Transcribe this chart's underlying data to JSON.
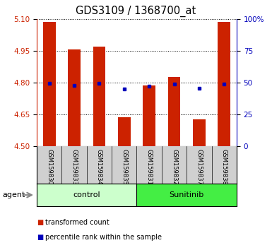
{
  "title": "GDS3109 / 1368700_at",
  "samples": [
    "GSM159830",
    "GSM159833",
    "GSM159834",
    "GSM159835",
    "GSM159831",
    "GSM159832",
    "GSM159837",
    "GSM159838"
  ],
  "red_top": [
    5.085,
    4.955,
    4.97,
    4.635,
    4.785,
    4.825,
    4.625,
    5.085
  ],
  "red_bottom": [
    4.5,
    4.5,
    4.5,
    4.5,
    4.5,
    4.5,
    4.5,
    4.5
  ],
  "blue_y": [
    4.795,
    4.785,
    4.795,
    4.77,
    4.782,
    4.793,
    4.773,
    4.793
  ],
  "ylim": [
    4.5,
    5.1
  ],
  "yticks_left": [
    4.5,
    4.65,
    4.8,
    4.95,
    5.1
  ],
  "yticks_right": [
    0,
    25,
    50,
    75,
    100
  ],
  "groups": [
    {
      "label": "control",
      "indices": [
        0,
        1,
        2,
        3
      ],
      "color": "#ccffcc"
    },
    {
      "label": "Sunitinib",
      "indices": [
        4,
        5,
        6,
        7
      ],
      "color": "#44ee44"
    }
  ],
  "bar_color": "#cc2200",
  "dot_color": "#0000bb",
  "bg_color": "#ffffff",
  "tick_label_color_left": "#cc2200",
  "tick_label_color_right": "#0000bb",
  "sample_area_color": "#d0d0d0",
  "legend_red_label": "transformed count",
  "legend_blue_label": "percentile rank within the sample",
  "agent_label": "agent",
  "bar_width": 0.5
}
